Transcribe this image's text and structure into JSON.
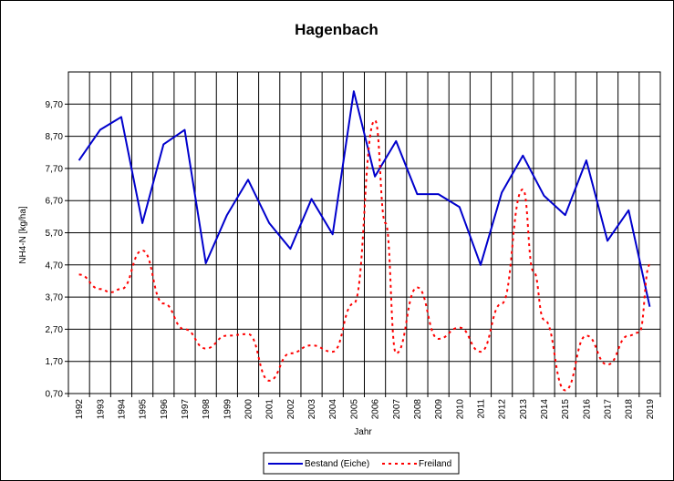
{
  "chart_data": {
    "type": "line",
    "title": "Hagenbach",
    "xlabel": "Jahr",
    "ylabel": "NH4-N [kg/ha]",
    "ylim": [
      0.7,
      10.7
    ],
    "yticks": [
      "0,70",
      "1,70",
      "2,70",
      "3,70",
      "4,70",
      "5,70",
      "6,70",
      "7,70",
      "8,70",
      "9,70"
    ],
    "categories": [
      "1992",
      "1993",
      "1994",
      "1995",
      "1996",
      "1997",
      "1998",
      "1999",
      "2000",
      "2001",
      "2002",
      "2003",
      "2004",
      "2005",
      "2006",
      "2007",
      "2008",
      "2009",
      "2010",
      "2011",
      "2012",
      "2013",
      "2014",
      "2015",
      "2016",
      "2017",
      "2018",
      "2019"
    ],
    "x_half_years": true,
    "grid": true,
    "legend_position": "bottom",
    "series": [
      {
        "name": "Bestand (Eiche)",
        "color": "#0000cc",
        "style": "solid",
        "values": [
          7.95,
          8.9,
          9.3,
          6.0,
          8.45,
          8.9,
          4.75,
          6.25,
          7.35,
          6.0,
          5.2,
          6.75,
          5.65,
          10.1,
          7.45,
          8.55,
          6.9,
          6.9,
          6.5,
          4.7,
          6.95,
          8.1,
          6.85,
          6.25,
          7.95,
          5.45,
          6.4,
          3.4
        ]
      },
      {
        "name": "Freiland",
        "color": "#ff0000",
        "style": "dotted",
        "values": [
          4.4,
          3.95,
          3.95,
          5.15,
          3.5,
          2.7,
          2.1,
          2.5,
          2.55,
          1.1,
          1.95,
          2.2,
          2.0,
          3.5,
          9.2,
          1.95,
          4.0,
          2.4,
          2.75,
          2.0,
          3.5,
          7.05,
          3.0,
          0.8,
          2.5,
          1.6,
          2.5,
          4.7
        ],
        "extra_half_points": [
          [
            1993.5,
            3.85
          ],
          [
            2006.5,
            6.0
          ],
          [
            2013.5,
            4.5
          ],
          [
            2018.5,
            2.6
          ]
        ]
      }
    ]
  }
}
